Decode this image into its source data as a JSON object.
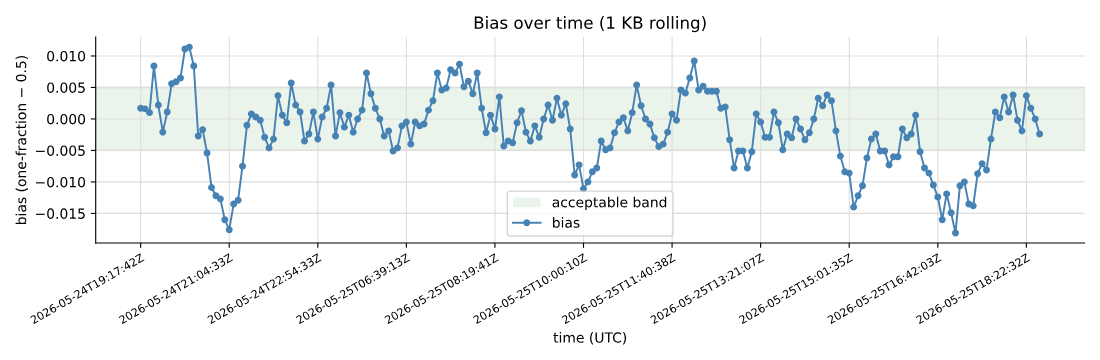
{
  "chart_data": {
    "type": "line",
    "title": "Bias over time (1 KB rolling)",
    "xlabel": "time (UTC)",
    "ylabel": "bias (one-fraction − 0.5)",
    "categories": [
      "2026-05-24T19:17:42Z",
      null,
      null,
      null,
      null,
      null,
      null,
      null,
      null,
      null,
      null,
      null,
      null,
      null,
      null,
      null,
      null,
      null,
      null,
      null,
      "2026-05-24T21:04:33Z",
      null,
      null,
      null,
      null,
      null,
      null,
      null,
      null,
      null,
      null,
      null,
      null,
      null,
      null,
      null,
      null,
      null,
      null,
      null,
      "2026-05-24T22:54:33Z",
      null,
      null,
      null,
      null,
      null,
      null,
      null,
      null,
      null,
      null,
      null,
      null,
      null,
      null,
      null,
      null,
      null,
      null,
      null,
      "2026-05-25T06:39:13Z",
      null,
      null,
      null,
      null,
      null,
      null,
      null,
      null,
      null,
      null,
      null,
      null,
      null,
      null,
      null,
      null,
      null,
      null,
      null,
      "2026-05-25T08:19:41Z",
      null,
      null,
      null,
      null,
      null,
      null,
      null,
      null,
      null,
      null,
      null,
      null,
      null,
      null,
      null,
      null,
      null,
      null,
      null,
      "2026-05-25T10:00:10Z",
      null,
      null,
      null,
      null,
      null,
      null,
      null,
      null,
      null,
      null,
      null,
      null,
      null,
      null,
      null,
      null,
      null,
      null,
      null,
      "2026-05-25T11:40:38Z",
      null,
      null,
      null,
      null,
      null,
      null,
      null,
      null,
      null,
      null,
      null,
      null,
      null,
      null,
      null,
      null,
      null,
      null,
      null,
      "2026-05-25T13:21:07Z",
      null,
      null,
      null,
      null,
      null,
      null,
      null,
      null,
      null,
      null,
      null,
      null,
      null,
      null,
      null,
      null,
      null,
      null,
      null,
      "2026-05-25T15:01:35Z",
      null,
      null,
      null,
      null,
      null,
      null,
      null,
      null,
      null,
      null,
      null,
      null,
      null,
      null,
      null,
      null,
      null,
      null,
      null,
      "2026-05-25T16:42:03Z",
      null,
      null,
      null,
      null,
      null,
      null,
      null,
      null,
      null,
      null,
      null,
      null,
      null,
      null,
      null,
      null,
      null,
      null,
      null,
      "2026-05-25T18:22:32Z",
      null,
      null,
      null
    ],
    "series": [
      {
        "name": "bias",
        "color": "#4682b4",
        "values": [
          0.0017,
          0.0016,
          0.001,
          0.0084,
          0.0022,
          -0.0021,
          0.0011,
          0.0056,
          0.0059,
          0.0065,
          0.0111,
          0.0114,
          0.0084,
          -0.0027,
          -0.0017,
          -0.0054,
          -0.0109,
          -0.0122,
          -0.0127,
          -0.016,
          -0.0176,
          -0.0135,
          -0.0129,
          -0.0075,
          -0.001,
          0.0008,
          0.0003,
          -0.0002,
          -0.0029,
          -0.0046,
          -0.0032,
          0.0037,
          0.0006,
          -0.0006,
          0.0057,
          0.0022,
          0.0011,
          -0.0035,
          -0.0024,
          0.0011,
          -0.0032,
          0.0003,
          0.0017,
          0.0054,
          -0.0027,
          0.001,
          -0.0013,
          0.0006,
          -0.0021,
          0.0,
          0.0014,
          0.0073,
          0.004,
          0.0017,
          0.0,
          -0.0027,
          -0.0019,
          -0.0051,
          -0.0046,
          -0.0011,
          -0.0005,
          -0.004,
          -0.0005,
          -0.0011,
          -0.0008,
          0.0014,
          0.0029,
          0.0073,
          0.0046,
          0.0049,
          0.0078,
          0.0073,
          0.0087,
          0.0051,
          0.006,
          0.004,
          0.0073,
          0.0017,
          -0.0022,
          0.0006,
          -0.0016,
          0.0035,
          -0.0043,
          -0.0035,
          -0.0038,
          -0.0006,
          0.0013,
          -0.0021,
          -0.0035,
          -0.0011,
          -0.0029,
          0.0,
          0.0022,
          -0.0002,
          0.0033,
          0.0006,
          0.0024,
          -0.0016,
          -0.0089,
          -0.0073,
          -0.0111,
          -0.01,
          -0.0084,
          -0.0078,
          -0.0035,
          -0.0049,
          -0.0046,
          -0.0022,
          -0.0005,
          0.0002,
          -0.0019,
          0.001,
          0.0054,
          0.0021,
          0.0,
          -0.0008,
          -0.003,
          -0.0044,
          -0.004,
          -0.0021,
          0.0008,
          -0.0002,
          0.0046,
          0.0041,
          0.0065,
          0.0092,
          0.0046,
          0.0052,
          0.0044,
          0.0044,
          0.0044,
          0.0017,
          0.0019,
          -0.0033,
          -0.0078,
          -0.0051,
          -0.0051,
          -0.0078,
          -0.0052,
          0.0008,
          -0.0005,
          -0.0029,
          -0.0029,
          0.0011,
          -0.0006,
          -0.0049,
          -0.0024,
          -0.003,
          0.0,
          -0.0016,
          -0.0033,
          -0.0022,
          0.0,
          0.0033,
          0.0021,
          0.0038,
          0.0029,
          -0.0019,
          -0.0059,
          -0.0084,
          -0.0086,
          -0.014,
          -0.0122,
          -0.0106,
          -0.0062,
          -0.0032,
          -0.0024,
          -0.0051,
          -0.0051,
          -0.0073,
          -0.006,
          -0.006,
          -0.0016,
          -0.003,
          -0.0024,
          0.0006,
          -0.0052,
          -0.0078,
          -0.0086,
          -0.0105,
          -0.0124,
          -0.016,
          -0.0119,
          -0.0149,
          -0.0181,
          -0.0106,
          -0.01,
          -0.0135,
          -0.0138,
          -0.0087,
          -0.0071,
          -0.0081,
          -0.0032,
          0.0011,
          0.0002,
          0.0035,
          0.0011,
          0.0038,
          -0.0002,
          -0.0019,
          0.0037,
          0.0017,
          0.0,
          -0.0024
        ]
      }
    ],
    "bands": [
      {
        "axis": "y",
        "from": -0.005,
        "to": 0.005,
        "label": "acceptable band",
        "color": "#ebf4eb"
      }
    ],
    "ylim": [
      -0.0197,
      0.013
    ],
    "yticks": [
      {
        "value": -0.015,
        "label": "−0.015"
      },
      {
        "value": -0.01,
        "label": "−0.010"
      },
      {
        "value": -0.005,
        "label": "−0.005"
      },
      {
        "value": 0,
        "label": "0.000"
      },
      {
        "value": 0.005,
        "label": "0.005"
      },
      {
        "value": 0.01,
        "label": "0.010"
      }
    ],
    "grid": true,
    "legend": "bottom",
    "marker": "circle",
    "line_style": "solid"
  }
}
